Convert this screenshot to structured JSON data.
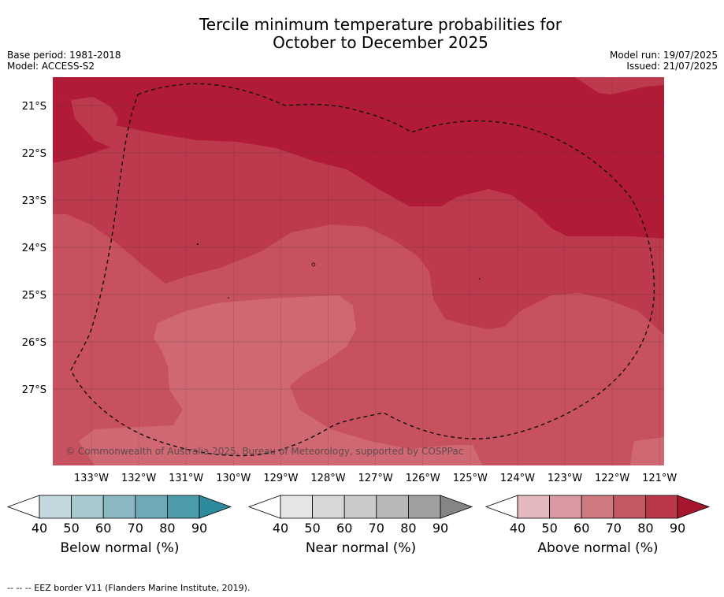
{
  "header": {
    "title_line1": "Tercile minimum temperature probabilities for",
    "title_line2": "October to December 2025",
    "base_period": "Base period: 1981-2018",
    "model": "Model: ACCESS-S2",
    "model_run": "Model run: 19/07/2025",
    "issued": "Issued: 21/07/2025"
  },
  "map": {
    "lat_labels": [
      "21°S",
      "22°S",
      "23°S",
      "24°S",
      "25°S",
      "26°S",
      "27°S"
    ],
    "lon_labels": [
      "133°W",
      "132°W",
      "131°W",
      "130°W",
      "129°W",
      "128°W",
      "127°W",
      "126°W",
      "125°W",
      "124°W",
      "123°W",
      "122°W",
      "121°W"
    ],
    "copyright": "© Commonwealth of Australia 2025, Bureau of Meteorology, supported by COSPPac",
    "colors": {
      "above_80_90": "#b21b38",
      "above_70_80": "#bd3a4e",
      "above_60_70": "#c7515f",
      "above_50_60": "#cf6872"
    }
  },
  "colorbars": [
    {
      "label": "Below normal (%)",
      "ticks": [
        "40",
        "50",
        "60",
        "70",
        "80",
        "90"
      ],
      "colors": [
        "#c3d8de",
        "#a8c9d0",
        "#8bb9c3",
        "#6fa9b6",
        "#4c9baa",
        "#2e8a9d"
      ]
    },
    {
      "label": "Near normal (%)",
      "ticks": [
        "40",
        "50",
        "60",
        "70",
        "80",
        "90"
      ],
      "colors": [
        "#e5e5e5",
        "#d8d8d8",
        "#cacaca",
        "#b7b7b7",
        "#a0a0a0",
        "#858585"
      ]
    },
    {
      "label": "Above normal (%)",
      "ticks": [
        "40",
        "50",
        "60",
        "70",
        "80",
        "90"
      ],
      "colors": [
        "#e5b8bf",
        "#d999a2",
        "#cf7981",
        "#c55865",
        "#b9384a",
        "#a6172f"
      ]
    }
  ],
  "footnote": "--  --  -- EEZ border V11 (Flanders Marine Institute, 2019)."
}
